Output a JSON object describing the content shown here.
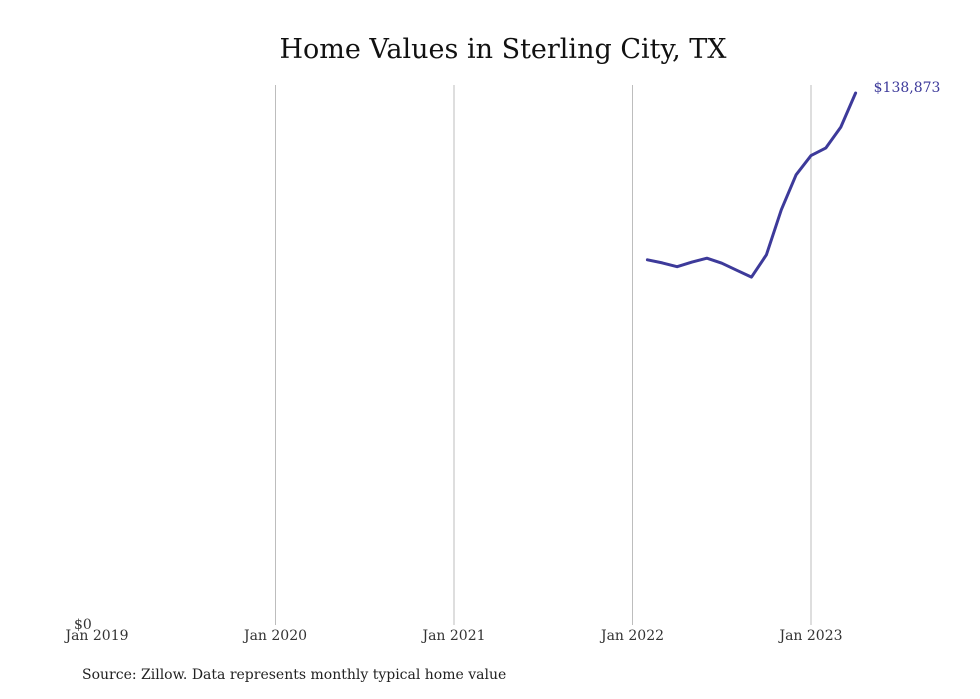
{
  "chart_data": {
    "type": "line",
    "title": "Home Values in Sterling City, TX",
    "xlabel": "",
    "ylabel": "",
    "x_ticks": [
      "Jan 2019",
      "Jan 2020",
      "Jan 2021",
      "Jan 2022",
      "Jan 2023"
    ],
    "y_tick_label": "$0",
    "ylim": [
      0,
      138873
    ],
    "xlim": [
      "2019-01",
      "2023-07"
    ],
    "grid": "vertical",
    "legend": "none",
    "series": [
      {
        "color": "#3d3a9a",
        "end_label": "$138,873",
        "points": [
          {
            "x": "2022-02",
            "y": 95500
          },
          {
            "x": "2022-03",
            "y": 94700
          },
          {
            "x": "2022-04",
            "y": 93700
          },
          {
            "x": "2022-05",
            "y": 94900
          },
          {
            "x": "2022-06",
            "y": 95900
          },
          {
            "x": "2022-07",
            "y": 94600
          },
          {
            "x": "2022-08",
            "y": 92800
          },
          {
            "x": "2022-09",
            "y": 91000
          },
          {
            "x": "2022-10",
            "y": 96800
          },
          {
            "x": "2022-11",
            "y": 108500
          },
          {
            "x": "2022-12",
            "y": 117600
          },
          {
            "x": "2023-01",
            "y": 122600
          },
          {
            "x": "2023-02",
            "y": 124600
          },
          {
            "x": "2023-03",
            "y": 130000
          },
          {
            "x": "2023-04",
            "y": 138873
          }
        ]
      }
    ]
  },
  "footer": {
    "source": "Source: Zillow. Data represents monthly typical home value"
  }
}
